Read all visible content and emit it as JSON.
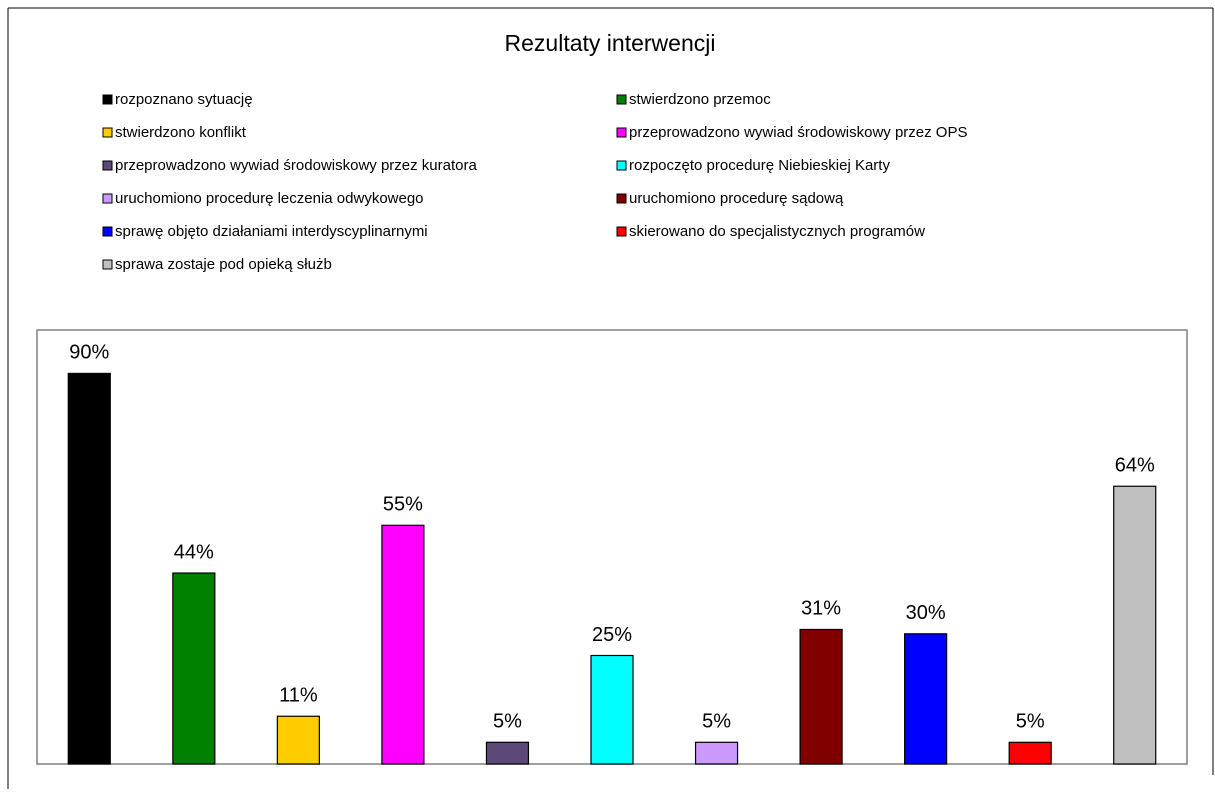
{
  "chart_data": {
    "type": "bar",
    "title": "Rezultaty interwencji",
    "ylim": [
      0,
      100
    ],
    "series": [
      {
        "name": "rozpoznano sytuację",
        "color": "#000000",
        "values": [
          90
        ],
        "value_labels": [
          "90%"
        ]
      },
      {
        "name": "stwierdzono przemoc",
        "color": "#008000",
        "values": [
          44
        ],
        "value_labels": [
          "44%"
        ]
      },
      {
        "name": "stwierdzono konflikt",
        "color": "#ffcc00",
        "values": [
          11
        ],
        "value_labels": [
          "11%"
        ]
      },
      {
        "name": "przeprowadzono wywiad środowiskowy przez OPS",
        "color": "#ff00ff",
        "values": [
          55
        ],
        "value_labels": [
          "55%"
        ]
      },
      {
        "name": "przeprowadzono wywiad środowiskowy przez kuratora",
        "color": "#5b4a78",
        "values": [
          5
        ],
        "value_labels": [
          "5%"
        ]
      },
      {
        "name": "rozpoczęto procedurę Niebieskiej Karty",
        "color": "#00ffff",
        "values": [
          25
        ],
        "value_labels": [
          "25%"
        ]
      },
      {
        "name": "uruchomiono procedurę leczenia odwykowego",
        "color": "#cc99ff",
        "values": [
          5
        ],
        "value_labels": [
          "5%"
        ]
      },
      {
        "name": "uruchomiono procedurę sądową",
        "color": "#800000",
        "values": [
          31
        ],
        "value_labels": [
          "31%"
        ]
      },
      {
        "name": "sprawę objęto działaniami interdyscyplinarnymi",
        "color": "#0000ff",
        "values": [
          30
        ],
        "value_labels": [
          "30%"
        ]
      },
      {
        "name": "skierowano do specjalistycznych programów",
        "color": "#ff0000",
        "values": [
          5
        ],
        "value_labels": [
          "5%"
        ]
      },
      {
        "name": "sprawa zostaje pod opieką służb",
        "color": "#c0c0c0",
        "values": [
          64
        ],
        "value_labels": [
          "64%"
        ]
      }
    ]
  }
}
